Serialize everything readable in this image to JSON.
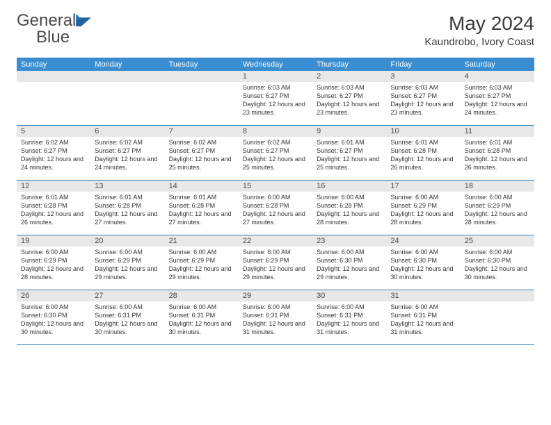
{
  "logo": {
    "text1": "General",
    "text2": "Blue",
    "text_color_gray": "#4a4a4a",
    "text_color_blue": "#2f7fc2",
    "icon_color": "#2f7fc2"
  },
  "header": {
    "month": "May 2024",
    "location": "Kaundrobo, Ivory Coast"
  },
  "style": {
    "header_bg": "#3a8dd0",
    "header_text": "#ffffff",
    "border_color": "#2f7fc2",
    "daynum_bg": "#e8e8e8",
    "body_text": "#333333",
    "title_fontsize": 28,
    "location_fontsize": 15,
    "dayhead_fontsize": 11,
    "daynum_fontsize": 11,
    "detail_fontsize": 9
  },
  "days_of_week": [
    "Sunday",
    "Monday",
    "Tuesday",
    "Wednesday",
    "Thursday",
    "Friday",
    "Saturday"
  ],
  "weeks": [
    [
      null,
      null,
      null,
      {
        "n": "1",
        "sr": "Sunrise: 6:03 AM",
        "ss": "Sunset: 6:27 PM",
        "dl": "Daylight: 12 hours and 23 minutes."
      },
      {
        "n": "2",
        "sr": "Sunrise: 6:03 AM",
        "ss": "Sunset: 6:27 PM",
        "dl": "Daylight: 12 hours and 23 minutes."
      },
      {
        "n": "3",
        "sr": "Sunrise: 6:03 AM",
        "ss": "Sunset: 6:27 PM",
        "dl": "Daylight: 12 hours and 23 minutes."
      },
      {
        "n": "4",
        "sr": "Sunrise: 6:03 AM",
        "ss": "Sunset: 6:27 PM",
        "dl": "Daylight: 12 hours and 24 minutes."
      }
    ],
    [
      {
        "n": "5",
        "sr": "Sunrise: 6:02 AM",
        "ss": "Sunset: 6:27 PM",
        "dl": "Daylight: 12 hours and 24 minutes."
      },
      {
        "n": "6",
        "sr": "Sunrise: 6:02 AM",
        "ss": "Sunset: 6:27 PM",
        "dl": "Daylight: 12 hours and 24 minutes."
      },
      {
        "n": "7",
        "sr": "Sunrise: 6:02 AM",
        "ss": "Sunset: 6:27 PM",
        "dl": "Daylight: 12 hours and 25 minutes."
      },
      {
        "n": "8",
        "sr": "Sunrise: 6:02 AM",
        "ss": "Sunset: 6:27 PM",
        "dl": "Daylight: 12 hours and 25 minutes."
      },
      {
        "n": "9",
        "sr": "Sunrise: 6:01 AM",
        "ss": "Sunset: 6:27 PM",
        "dl": "Daylight: 12 hours and 25 minutes."
      },
      {
        "n": "10",
        "sr": "Sunrise: 6:01 AM",
        "ss": "Sunset: 6:28 PM",
        "dl": "Daylight: 12 hours and 26 minutes."
      },
      {
        "n": "11",
        "sr": "Sunrise: 6:01 AM",
        "ss": "Sunset: 6:28 PM",
        "dl": "Daylight: 12 hours and 26 minutes."
      }
    ],
    [
      {
        "n": "12",
        "sr": "Sunrise: 6:01 AM",
        "ss": "Sunset: 6:28 PM",
        "dl": "Daylight: 12 hours and 26 minutes."
      },
      {
        "n": "13",
        "sr": "Sunrise: 6:01 AM",
        "ss": "Sunset: 6:28 PM",
        "dl": "Daylight: 12 hours and 27 minutes."
      },
      {
        "n": "14",
        "sr": "Sunrise: 6:01 AM",
        "ss": "Sunset: 6:28 PM",
        "dl": "Daylight: 12 hours and 27 minutes."
      },
      {
        "n": "15",
        "sr": "Sunrise: 6:00 AM",
        "ss": "Sunset: 6:28 PM",
        "dl": "Daylight: 12 hours and 27 minutes."
      },
      {
        "n": "16",
        "sr": "Sunrise: 6:00 AM",
        "ss": "Sunset: 6:28 PM",
        "dl": "Daylight: 12 hours and 28 minutes."
      },
      {
        "n": "17",
        "sr": "Sunrise: 6:00 AM",
        "ss": "Sunset: 6:29 PM",
        "dl": "Daylight: 12 hours and 28 minutes."
      },
      {
        "n": "18",
        "sr": "Sunrise: 6:00 AM",
        "ss": "Sunset: 6:29 PM",
        "dl": "Daylight: 12 hours and 28 minutes."
      }
    ],
    [
      {
        "n": "19",
        "sr": "Sunrise: 6:00 AM",
        "ss": "Sunset: 6:29 PM",
        "dl": "Daylight: 12 hours and 28 minutes."
      },
      {
        "n": "20",
        "sr": "Sunrise: 6:00 AM",
        "ss": "Sunset: 6:29 PM",
        "dl": "Daylight: 12 hours and 29 minutes."
      },
      {
        "n": "21",
        "sr": "Sunrise: 6:00 AM",
        "ss": "Sunset: 6:29 PM",
        "dl": "Daylight: 12 hours and 29 minutes."
      },
      {
        "n": "22",
        "sr": "Sunrise: 6:00 AM",
        "ss": "Sunset: 6:29 PM",
        "dl": "Daylight: 12 hours and 29 minutes."
      },
      {
        "n": "23",
        "sr": "Sunrise: 6:00 AM",
        "ss": "Sunset: 6:30 PM",
        "dl": "Daylight: 12 hours and 29 minutes."
      },
      {
        "n": "24",
        "sr": "Sunrise: 6:00 AM",
        "ss": "Sunset: 6:30 PM",
        "dl": "Daylight: 12 hours and 30 minutes."
      },
      {
        "n": "25",
        "sr": "Sunrise: 6:00 AM",
        "ss": "Sunset: 6:30 PM",
        "dl": "Daylight: 12 hours and 30 minutes."
      }
    ],
    [
      {
        "n": "26",
        "sr": "Sunrise: 6:00 AM",
        "ss": "Sunset: 6:30 PM",
        "dl": "Daylight: 12 hours and 30 minutes."
      },
      {
        "n": "27",
        "sr": "Sunrise: 6:00 AM",
        "ss": "Sunset: 6:31 PM",
        "dl": "Daylight: 12 hours and 30 minutes."
      },
      {
        "n": "28",
        "sr": "Sunrise: 6:00 AM",
        "ss": "Sunset: 6:31 PM",
        "dl": "Daylight: 12 hours and 30 minutes."
      },
      {
        "n": "29",
        "sr": "Sunrise: 6:00 AM",
        "ss": "Sunset: 6:31 PM",
        "dl": "Daylight: 12 hours and 31 minutes."
      },
      {
        "n": "30",
        "sr": "Sunrise: 6:00 AM",
        "ss": "Sunset: 6:31 PM",
        "dl": "Daylight: 12 hours and 31 minutes."
      },
      {
        "n": "31",
        "sr": "Sunrise: 6:00 AM",
        "ss": "Sunset: 6:31 PM",
        "dl": "Daylight: 12 hours and 31 minutes."
      },
      null
    ]
  ]
}
